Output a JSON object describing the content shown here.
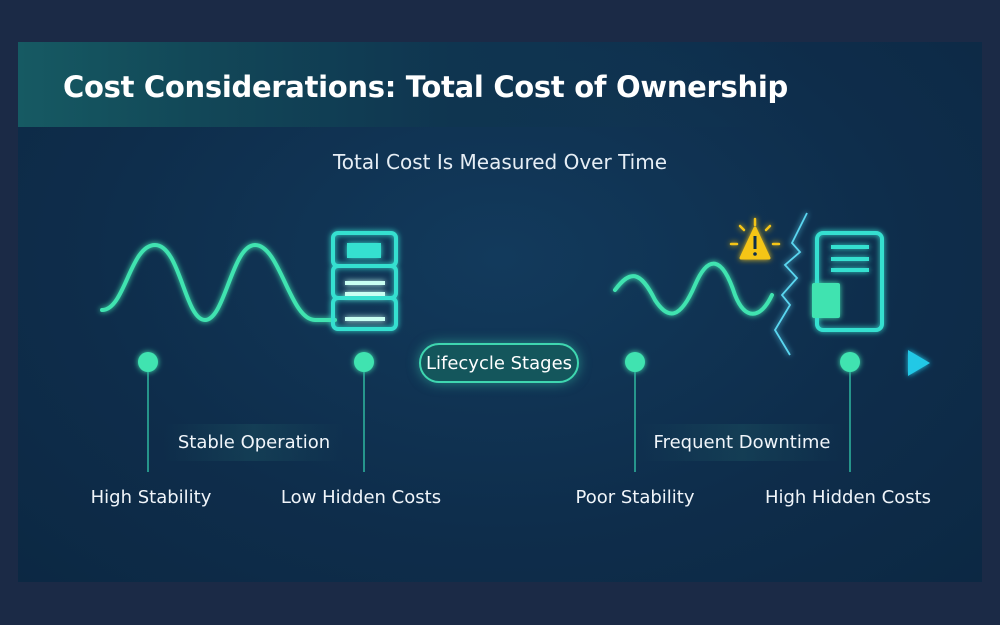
{
  "title": "Cost Considerations: Total Cost of Ownership",
  "subtitle": "Total Cost Is Measured Over Time",
  "timeline": {
    "center_label": "Lifecycle Stages",
    "milestones": [
      "High Stability",
      "Low Hidden Costs",
      "Poor Stability",
      "High Hidden Costs"
    ],
    "phases": [
      "Stable Operation",
      "Frequent Downtime"
    ]
  },
  "icons": [
    "stable-wave-icon",
    "server-stack-icon",
    "unstable-wave-icon",
    "warning-icon",
    "crack-icon",
    "document-icon"
  ],
  "colors": {
    "accent_green": "#3fe3b0",
    "accent_cyan": "#22c8e6",
    "warning": "#f5c518",
    "background": "#0e2d4b"
  }
}
